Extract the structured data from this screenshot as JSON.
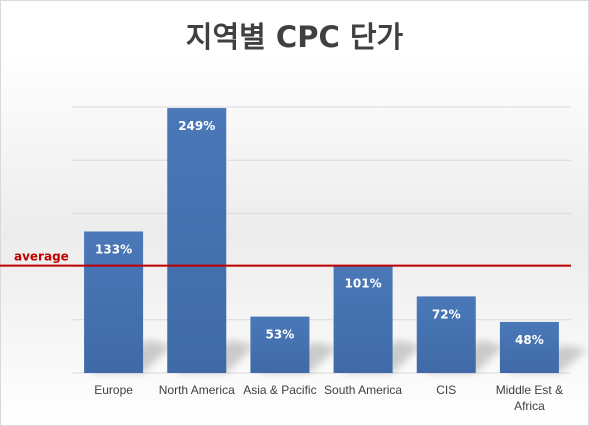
{
  "chart_data": {
    "type": "bar",
    "title": "지역별 CPC 단가",
    "categories": [
      "Europe",
      "North America",
      "Asia & Pacific",
      "South America",
      "CIS",
      "Middle Est & Africa"
    ],
    "category_lines": [
      [
        "Europe"
      ],
      [
        "North America"
      ],
      [
        "Asia & Pacific"
      ],
      [
        "South America"
      ],
      [
        "CIS"
      ],
      [
        "Middle Est &",
        "Africa"
      ]
    ],
    "values": [
      133,
      249,
      53,
      101,
      72,
      48
    ],
    "value_labels": [
      "133%",
      "249%",
      "53%",
      "101%",
      "72%",
      "48%"
    ],
    "ylim": [
      0,
      250
    ],
    "average": {
      "label": "average",
      "value": 100
    },
    "grid": true,
    "legend": "none",
    "colors": {
      "bar": "#4a78b8",
      "bar_dark": "#3f6aa6",
      "average_line": "#c00000",
      "grid": "#d9d9d9"
    }
  }
}
